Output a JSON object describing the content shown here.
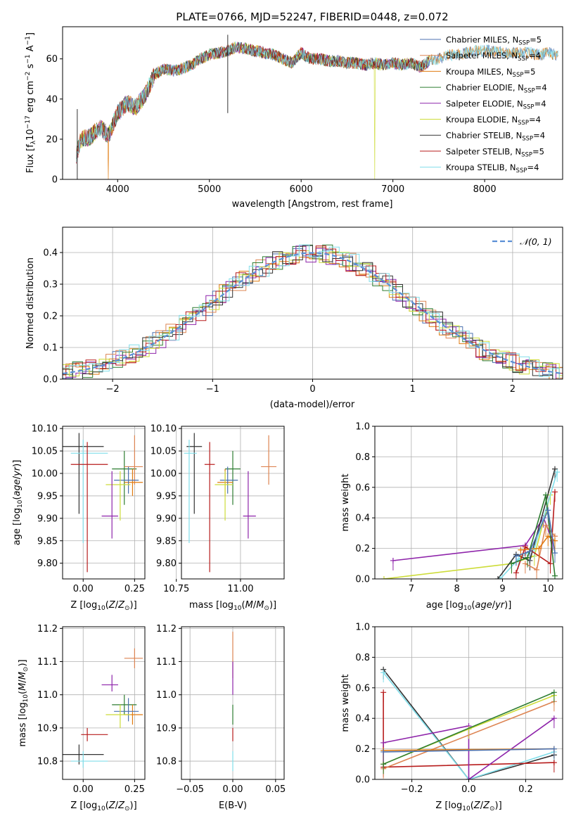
{
  "colors": {
    "chabrier_miles": "#4c72b0",
    "salpeter_miles": "#dd8452",
    "kroupa_miles": "#e07b10",
    "chabrier_elodie": "#2e7d32",
    "salpeter_elodie": "#8e24aa",
    "kroupa_elodie": "#cddc39",
    "chabrier_stelib": "#333333",
    "salpeter_stelib": "#b71c1c",
    "kroupa_stelib": "#80deea",
    "normal_curve": "#5b8fd6"
  },
  "chart_data": [
    {
      "id": "spectrum",
      "type": "line",
      "title": "PLATE=0766, MJD=52247, FIBERID=0448, z=0.072",
      "xlabel": "wavelength [Angstrom, rest frame]",
      "ylabel": "Flux [f_λ10^-17 erg cm^-2 s^-1 A^-1]",
      "xlim": [
        3400,
        8850
      ],
      "ylim": [
        0,
        76
      ],
      "xticks": [
        "4000",
        "5000",
        "6000",
        "7000",
        "8000"
      ],
      "yticks": [
        "0",
        "20",
        "40",
        "60"
      ],
      "x": [
        3550,
        3600,
        3700,
        3800,
        3900,
        4000,
        4100,
        4200,
        4300,
        4400,
        4500,
        4600,
        4700,
        4800,
        4900,
        5000,
        5100,
        5200,
        5300,
        5400,
        5500,
        5600,
        5700,
        5800,
        5900,
        6000,
        6100,
        6200,
        6300,
        6400,
        6500,
        6600,
        6700,
        6800,
        6900,
        7000,
        7100,
        7200,
        7300,
        7400,
        7500,
        7600,
        7700,
        7800,
        7900,
        8000,
        8100,
        8200,
        8300,
        8400,
        8500,
        8600,
        8700,
        8800
      ],
      "y": [
        12,
        20,
        21,
        26,
        22,
        33,
        38,
        36,
        42,
        52,
        55,
        54,
        55,
        57,
        60,
        62,
        63,
        64,
        66,
        65,
        64,
        63,
        62,
        60,
        58,
        63,
        60,
        60,
        59,
        59,
        58,
        58,
        57,
        58,
        57,
        58,
        57,
        58,
        56,
        59,
        60,
        62,
        62,
        63,
        64,
        64,
        64,
        63,
        63,
        63,
        63,
        62,
        63,
        62
      ],
      "legend": [
        {
          "label": "Chabrier MILES, N",
          "sub": "SSP",
          "tail": "=5",
          "color_key": "chabrier_miles"
        },
        {
          "label": "Salpeter MILES, N",
          "sub": "SSP",
          "tail": "=4",
          "color_key": "salpeter_miles"
        },
        {
          "label": "Kroupa MILES, N",
          "sub": "SSP",
          "tail": "=5",
          "color_key": "kroupa_miles"
        },
        {
          "label": "Chabrier ELODIE, N",
          "sub": "SSP",
          "tail": "=4",
          "color_key": "chabrier_elodie"
        },
        {
          "label": "Salpeter ELODIE, N",
          "sub": "SSP",
          "tail": "=4",
          "color_key": "salpeter_elodie"
        },
        {
          "label": "Kroupa ELODIE, N",
          "sub": "SSP",
          "tail": "=4",
          "color_key": "kroupa_elodie"
        },
        {
          "label": "Chabrier STELIB, N",
          "sub": "SSP",
          "tail": "=4",
          "color_key": "chabrier_stelib"
        },
        {
          "label": "Salpeter STELIB, N",
          "sub": "SSP",
          "tail": "=5",
          "color_key": "salpeter_stelib"
        },
        {
          "label": "Kroupa STELIB, N",
          "sub": "SSP",
          "tail": "=4",
          "color_key": "kroupa_stelib"
        }
      ]
    },
    {
      "id": "residual_hist",
      "type": "line",
      "xlabel": "(data-model)/error",
      "ylabel": "Normed distribution",
      "xlim": [
        -2.5,
        2.5
      ],
      "ylim": [
        0,
        0.48
      ],
      "xticks": [
        "−2",
        "−1",
        "0",
        "1",
        "2"
      ],
      "yticks": [
        "0.0",
        "0.1",
        "0.2",
        "0.3",
        "0.4"
      ],
      "legend": "𝒩(0, 1)",
      "grid": true
    },
    {
      "id": "age_vs_Z",
      "type": "scatter",
      "xlabel": "Z [log10(Z/Z⊙)]",
      "ylabel": "age  [log10(age/yr)]",
      "xlim": [
        -0.1,
        0.3
      ],
      "ylim": [
        9.765,
        10.105
      ],
      "xticks": [
        "0.00",
        "0.25"
      ],
      "yticks": [
        "9.80",
        "9.85",
        "9.90",
        "9.95",
        "10.00",
        "10.05",
        "10.10"
      ],
      "points": [
        {
          "x": -0.02,
          "xerr": [
            0.08,
            0.12
          ],
          "y": 10.06,
          "yerr": [
            0.15,
            0.03
          ],
          "color_key": "chabrier_stelib"
        },
        {
          "x": 0.0,
          "xerr": [
            0.06,
            0.12
          ],
          "y": 10.045,
          "yerr": [
            0.2,
            0.03
          ],
          "color_key": "kroupa_stelib"
        },
        {
          "x": 0.02,
          "xerr": [
            0.08,
            0.1
          ],
          "y": 10.02,
          "yerr": [
            0.24,
            0.05
          ],
          "color_key": "salpeter_stelib"
        },
        {
          "x": 0.2,
          "xerr": [
            0.06,
            0.06
          ],
          "y": 10.01,
          "yerr": [
            0.08,
            0.04
          ],
          "color_key": "chabrier_elodie"
        },
        {
          "x": 0.25,
          "xerr": [
            0.05,
            0.04
          ],
          "y": 10.015,
          "yerr": [
            0.04,
            0.07
          ],
          "color_key": "salpeter_miles"
        },
        {
          "x": 0.24,
          "xerr": [
            0.04,
            0.05
          ],
          "y": 9.98,
          "yerr": [
            0.03,
            0.03
          ],
          "color_key": "kroupa_miles"
        },
        {
          "x": 0.22,
          "xerr": [
            0.07,
            0.05
          ],
          "y": 9.985,
          "yerr": [
            0.03,
            0.03
          ],
          "color_key": "chabrier_miles"
        },
        {
          "x": 0.18,
          "xerr": [
            0.07,
            0.05
          ],
          "y": 9.975,
          "yerr": [
            0.08,
            0.03
          ],
          "color_key": "kroupa_elodie"
        },
        {
          "x": 0.14,
          "xerr": [
            0.05,
            0.03
          ],
          "y": 9.905,
          "yerr": [
            0.05,
            0.1
          ],
          "color_key": "salpeter_elodie"
        }
      ]
    },
    {
      "id": "age_vs_mass",
      "type": "scatter",
      "xlabel": "mass [log10(M/M⊙)]",
      "ylabel": "",
      "xlim": [
        10.77,
        11.17
      ],
      "ylim": [
        9.765,
        10.105
      ],
      "xticks": [
        "10.75",
        "11.00"
      ],
      "yticks": [
        "9.80",
        "9.85",
        "9.90",
        "9.95",
        "10.00",
        "10.05",
        "10.10"
      ],
      "points": [
        {
          "x": 10.82,
          "xerr": [
            0.03,
            0.03
          ],
          "y": 10.06,
          "yerr": [
            0.15,
            0.03
          ],
          "color_key": "chabrier_stelib"
        },
        {
          "x": 10.8,
          "xerr": [
            0.02,
            0.03
          ],
          "y": 10.045,
          "yerr": [
            0.2,
            0.03
          ],
          "color_key": "kroupa_stelib"
        },
        {
          "x": 10.88,
          "xerr": [
            0.02,
            0.02
          ],
          "y": 10.02,
          "yerr": [
            0.24,
            0.05
          ],
          "color_key": "salpeter_stelib"
        },
        {
          "x": 10.97,
          "xerr": [
            0.03,
            0.03
          ],
          "y": 10.01,
          "yerr": [
            0.08,
            0.04
          ],
          "color_key": "chabrier_elodie"
        },
        {
          "x": 11.11,
          "xerr": [
            0.03,
            0.03
          ],
          "y": 10.015,
          "yerr": [
            0.04,
            0.07
          ],
          "color_key": "salpeter_miles"
        },
        {
          "x": 10.94,
          "xerr": [
            0.03,
            0.03
          ],
          "y": 9.98,
          "yerr": [
            0.03,
            0.03
          ],
          "color_key": "kroupa_miles"
        },
        {
          "x": 10.95,
          "xerr": [
            0.03,
            0.04
          ],
          "y": 9.985,
          "yerr": [
            0.03,
            0.03
          ],
          "color_key": "chabrier_miles"
        },
        {
          "x": 10.94,
          "xerr": [
            0.04,
            0.03
          ],
          "y": 9.975,
          "yerr": [
            0.08,
            0.03
          ],
          "color_key": "kroupa_elodie"
        },
        {
          "x": 11.03,
          "xerr": [
            0.02,
            0.03
          ],
          "y": 9.905,
          "yerr": [
            0.05,
            0.1
          ],
          "color_key": "salpeter_elodie"
        }
      ]
    },
    {
      "id": "mass_weight_vs_age",
      "type": "line",
      "xlabel": "age  [log10(age/yr)]",
      "ylabel": "mass weight",
      "xlim": [
        6.2,
        10.32
      ],
      "ylim": [
        0,
        1
      ],
      "xticks": [
        "7",
        "8",
        "9",
        "10"
      ],
      "yticks": [
        "0.0",
        "0.2",
        "0.4",
        "0.6",
        "0.8",
        "1.0"
      ],
      "grid": true,
      "series": [
        {
          "color_key": "salpeter_elodie",
          "x": [
            6.6,
            9.5,
            9.9,
            10.1
          ],
          "y": [
            0.12,
            0.22,
            0.4,
            0.25
          ]
        },
        {
          "color_key": "kroupa_elodie",
          "x": [
            6.4,
            9.2,
            9.7,
            10.05
          ],
          "y": [
            0.0,
            0.1,
            0.15,
            0.55
          ]
        },
        {
          "color_key": "chabrier_stelib",
          "x": [
            8.9,
            9.3,
            9.6,
            10.15
          ],
          "y": [
            0.0,
            0.16,
            0.12,
            0.72
          ]
        },
        {
          "color_key": "kroupa_stelib",
          "x": [
            8.95,
            9.35,
            9.7,
            10.2
          ],
          "y": [
            0.0,
            0.13,
            0.2,
            0.7
          ]
        },
        {
          "color_key": "salpeter_stelib",
          "x": [
            9.3,
            9.5,
            10.05,
            10.15
          ],
          "y": [
            0.04,
            0.21,
            0.1,
            0.57
          ]
        },
        {
          "color_key": "salpeter_miles",
          "x": [
            9.5,
            9.75,
            9.95,
            10.15
          ],
          "y": [
            0.1,
            0.06,
            0.35,
            0.28
          ]
        },
        {
          "color_key": "kroupa_miles",
          "x": [
            9.4,
            9.8,
            10.0,
            10.15
          ],
          "y": [
            0.19,
            0.2,
            0.28,
            0.25
          ]
        },
        {
          "color_key": "chabrier_elodie",
          "x": [
            9.2,
            9.55,
            9.95,
            10.15
          ],
          "y": [
            0.1,
            0.14,
            0.55,
            0.02
          ]
        },
        {
          "color_key": "chabrier_miles",
          "x": [
            9.3,
            9.6,
            10.0,
            10.15
          ],
          "y": [
            0.15,
            0.18,
            0.45,
            0.17
          ]
        }
      ]
    },
    {
      "id": "mass_vs_Z",
      "type": "scatter",
      "xlabel": "Z [log10(Z/Z⊙)]",
      "ylabel": "mass [log10(M/M⊙)]",
      "xlim": [
        -0.1,
        0.3
      ],
      "ylim": [
        10.745,
        11.205
      ],
      "xticks": [
        "0.00",
        "0.25"
      ],
      "yticks": [
        "10.8",
        "10.9",
        "11.0",
        "11.1",
        "11.2"
      ],
      "points": [
        {
          "x": -0.02,
          "xerr": [
            0.08,
            0.12
          ],
          "y": 10.82,
          "yerr": [
            0.03,
            0.03
          ],
          "color_key": "chabrier_stelib"
        },
        {
          "x": 0.0,
          "xerr": [
            0.06,
            0.12
          ],
          "y": 10.8,
          "yerr": [
            0.02,
            0.03
          ],
          "color_key": "kroupa_stelib"
        },
        {
          "x": 0.02,
          "xerr": [
            0.03,
            0.1
          ],
          "y": 10.88,
          "yerr": [
            0.02,
            0.02
          ],
          "color_key": "salpeter_stelib"
        },
        {
          "x": 0.2,
          "xerr": [
            0.06,
            0.06
          ],
          "y": 10.97,
          "yerr": [
            0.03,
            0.03
          ],
          "color_key": "chabrier_elodie"
        },
        {
          "x": 0.25,
          "xerr": [
            0.05,
            0.04
          ],
          "y": 11.11,
          "yerr": [
            0.03,
            0.03
          ],
          "color_key": "salpeter_miles"
        },
        {
          "x": 0.24,
          "xerr": [
            0.04,
            0.05
          ],
          "y": 10.94,
          "yerr": [
            0.03,
            0.03
          ],
          "color_key": "kroupa_miles"
        },
        {
          "x": 0.22,
          "xerr": [
            0.07,
            0.05
          ],
          "y": 10.95,
          "yerr": [
            0.03,
            0.04
          ],
          "color_key": "chabrier_miles"
        },
        {
          "x": 0.18,
          "xerr": [
            0.07,
            0.05
          ],
          "y": 10.94,
          "yerr": [
            0.04,
            0.03
          ],
          "color_key": "kroupa_elodie"
        },
        {
          "x": 0.14,
          "xerr": [
            0.05,
            0.03
          ],
          "y": 11.03,
          "yerr": [
            0.02,
            0.03
          ],
          "color_key": "salpeter_elodie"
        }
      ]
    },
    {
      "id": "mass_vs_ebv",
      "type": "scatter",
      "xlabel": "E(B-V)",
      "ylabel": "",
      "xlim": [
        -0.06,
        0.06
      ],
      "ylim": [
        10.745,
        11.205
      ],
      "xticks": [
        "−0.05",
        "0.00",
        "0.05"
      ],
      "yticks": [
        "10.8",
        "10.9",
        "11.0",
        "11.1",
        "11.2"
      ],
      "points": [
        {
          "x": 0,
          "yerr_range": [
            11.05,
            11.19
          ],
          "color_key": "salpeter_miles"
        },
        {
          "x": 0,
          "yerr_range": [
            11.0,
            11.1
          ],
          "color_key": "salpeter_elodie"
        },
        {
          "x": 0,
          "yerr_range": [
            10.91,
            10.97
          ],
          "color_key": "chabrier_elodie"
        },
        {
          "x": 0,
          "yerr_range": [
            10.86,
            10.9
          ],
          "color_key": "salpeter_stelib"
        },
        {
          "x": 0,
          "yerr_range": [
            10.77,
            10.83
          ],
          "color_key": "kroupa_stelib"
        }
      ]
    },
    {
      "id": "mass_weight_vs_Z",
      "type": "line",
      "xlabel": "Z [log10(Z/Z⊙)]",
      "ylabel": "mass weight",
      "xlim": [
        -0.33,
        0.33
      ],
      "ylim": [
        0,
        1
      ],
      "xticks": [
        "−0.2",
        "0.0",
        "0.2"
      ],
      "yticks": [
        "0.0",
        "0.2",
        "0.4",
        "0.6",
        "0.8",
        "1.0"
      ],
      "grid": true,
      "series": [
        {
          "color_key": "chabrier_stelib",
          "x": [
            -0.3,
            0.0,
            0.3
          ],
          "y": [
            0.72,
            0.0,
            0.16
          ]
        },
        {
          "color_key": "kroupa_stelib",
          "x": [
            -0.3,
            0.0,
            0.3
          ],
          "y": [
            0.7,
            0.0,
            0.18
          ]
        },
        {
          "color_key": "salpeter_stelib",
          "x": [
            -0.3,
            -0.3,
            0.3
          ],
          "y": [
            0.57,
            0.08,
            0.11
          ]
        },
        {
          "color_key": "salpeter_elodie",
          "x": [
            -0.3,
            0.0,
            0.0,
            0.3
          ],
          "y": [
            0.24,
            0.35,
            0.0,
            0.4
          ]
        },
        {
          "color_key": "kroupa_elodie",
          "x": [
            -0.3,
            0.0,
            0.3
          ],
          "y": [
            0.1,
            0.33,
            0.55
          ]
        },
        {
          "color_key": "salpeter_miles",
          "x": [
            -0.3,
            0.3
          ],
          "y": [
            0.07,
            0.51
          ]
        },
        {
          "color_key": "chabrier_elodie",
          "x": [
            -0.3,
            0.3
          ],
          "y": [
            0.1,
            0.57
          ]
        },
        {
          "color_key": "kroupa_miles",
          "x": [
            -0.3,
            0.3
          ],
          "y": [
            0.19,
            0.2
          ]
        },
        {
          "color_key": "chabrier_miles",
          "x": [
            -0.3,
            0.3
          ],
          "y": [
            0.18,
            0.2
          ]
        }
      ]
    }
  ]
}
